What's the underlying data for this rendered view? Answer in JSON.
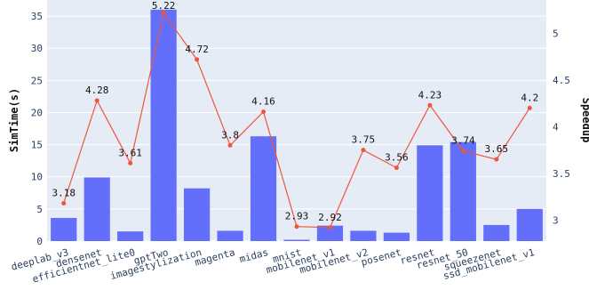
{
  "chart_data": {
    "type": "bar",
    "title": "",
    "categories": [
      "deeplab_v3",
      "densenet",
      "efficientnet_lite0",
      "gptTwo",
      "imagestylization",
      "magenta",
      "midas",
      "mnist",
      "mobilenet_v1",
      "mobilenet_v2",
      "posenet",
      "resnet",
      "resnet_50",
      "squeezenet",
      "ssd_mobilenet_v1"
    ],
    "series": [
      {
        "name": "",
        "type": "bar",
        "axis": "left",
        "color": "#636efa",
        "values": [
          3.6,
          9.9,
          1.5,
          36.0,
          8.2,
          1.6,
          16.3,
          0.2,
          2.4,
          1.6,
          1.3,
          14.9,
          15.4,
          2.5,
          5.0
        ]
      },
      {
        "name": "",
        "type": "line",
        "axis": "right",
        "color": "#ef553b",
        "values": [
          3.18,
          4.28,
          3.61,
          5.22,
          4.72,
          3.8,
          4.16,
          2.93,
          2.92,
          3.75,
          3.56,
          4.23,
          3.74,
          3.65,
          4.2
        ],
        "labels": [
          "3.18",
          "4.28",
          "3.61",
          "5.22",
          "4.72",
          "3.8",
          "4.16",
          "2.93",
          "2.92",
          "3.75",
          "3.56",
          "4.23",
          "3.74",
          "3.65",
          "4.2"
        ]
      }
    ],
    "ylabel": "SimTime(s)",
    "y2label": "Speedup",
    "ylim": [
      0,
      37.5
    ],
    "y2lim": [
      2.775,
      5.357
    ],
    "yticks": [
      "0",
      "5",
      "10",
      "15",
      "20",
      "25",
      "30",
      "35"
    ],
    "y2ticks": [
      "3",
      "3.5",
      "4",
      "4.5",
      "5"
    ],
    "grid": true,
    "legend": "none"
  }
}
